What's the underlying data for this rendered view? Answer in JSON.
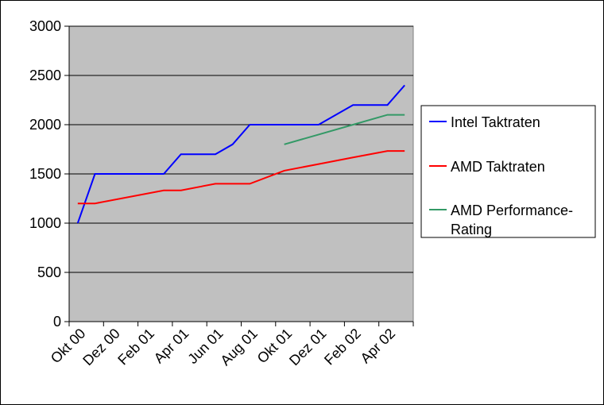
{
  "chart_data": {
    "type": "line",
    "title": "",
    "xlabel": "",
    "ylabel": "",
    "ylim": [
      0,
      3000
    ],
    "y_ticks": [
      0,
      500,
      1000,
      1500,
      2000,
      2500,
      3000
    ],
    "x_tick_labels": [
      "Okt 00",
      "Dez 00",
      "Feb 01",
      "Apr 01",
      "Jun 01",
      "Aug 01",
      "Okt 01",
      "Dez 01",
      "Feb 02",
      "Apr 02"
    ],
    "plot_background": "#c0c0c0",
    "grid": "horizontal",
    "legend_position": "right",
    "series": [
      {
        "name": "Intel Taktraten",
        "color": "#0000ff",
        "points": [
          [
            0.25,
            1000
          ],
          [
            0.75,
            1500
          ],
          [
            2.75,
            1500
          ],
          [
            3.25,
            1700
          ],
          [
            4.25,
            1700
          ],
          [
            4.75,
            1800
          ],
          [
            5.25,
            2000
          ],
          [
            7.25,
            2000
          ],
          [
            8.25,
            2200
          ],
          [
            9.25,
            2200
          ],
          [
            9.75,
            2400
          ]
        ]
      },
      {
        "name": "AMD Taktraten",
        "color": "#ff0000",
        "points": [
          [
            0.25,
            1200
          ],
          [
            0.75,
            1200
          ],
          [
            2.75,
            1333
          ],
          [
            3.25,
            1333
          ],
          [
            4.25,
            1400
          ],
          [
            5.25,
            1400
          ],
          [
            6.25,
            1533
          ],
          [
            7.25,
            1600
          ],
          [
            8.25,
            1667
          ],
          [
            9.25,
            1733
          ],
          [
            9.75,
            1733
          ]
        ]
      },
      {
        "name": "AMD Performance-Rating",
        "color": "#339966",
        "points": [
          [
            6.25,
            1800
          ],
          [
            7.25,
            1900
          ],
          [
            8.25,
            2000
          ],
          [
            9.25,
            2100
          ],
          [
            9.75,
            2100
          ]
        ]
      }
    ]
  },
  "legend": {
    "items": [
      {
        "lines": [
          "Intel Taktraten"
        ]
      },
      {
        "lines": [
          "AMD Taktraten"
        ]
      },
      {
        "lines": [
          "AMD Performance-",
          "Rating"
        ]
      }
    ]
  }
}
